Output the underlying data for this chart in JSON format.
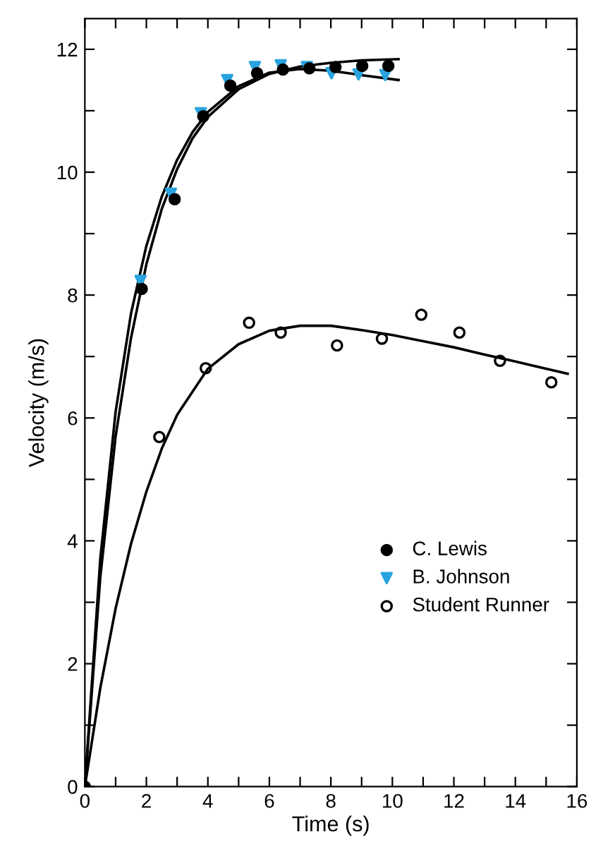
{
  "chart_data": {
    "type": "scatter",
    "xlabel": "Time (s)",
    "ylabel": "Velocity (m/s)",
    "xlim": [
      0,
      16
    ],
    "ylim": [
      0,
      12.5
    ],
    "xticks": [
      0,
      {
        "value": 1,
        "label": null
      },
      2,
      {
        "value": 3,
        "label": null
      },
      4,
      {
        "value": 5,
        "label": null
      },
      6,
      {
        "value": 7,
        "label": null
      },
      8,
      {
        "value": 9,
        "label": null
      },
      10,
      {
        "value": 11,
        "label": null
      },
      12,
      {
        "value": 13,
        "label": null
      },
      14,
      {
        "value": 15,
        "label": null
      },
      16
    ],
    "yticks": [
      0,
      {
        "value": 1,
        "label": null
      },
      2,
      {
        "value": 3,
        "label": null
      },
      4,
      {
        "value": 5,
        "label": null
      },
      6,
      {
        "value": 7,
        "label": null
      },
      8,
      {
        "value": 9,
        "label": null
      },
      10,
      {
        "value": 11,
        "label": null
      },
      12
    ],
    "grid": false,
    "legend": "bottom right",
    "series": [
      {
        "name": "C. Lewis",
        "marker": "circle",
        "color": "#000000",
        "x": [
          0,
          1.85,
          2.92,
          3.85,
          4.73,
          5.6,
          6.44,
          7.3,
          8.15,
          9.02,
          9.87
        ],
        "values": [
          0,
          8.1,
          9.56,
          10.91,
          11.41,
          11.61,
          11.67,
          11.69,
          11.71,
          11.73,
          11.73
        ]
      },
      {
        "name": "B. Johnson",
        "marker": "triangle",
        "color": "#29a3e0",
        "x": [
          1.81,
          2.8,
          3.77,
          4.63,
          5.53,
          6.37,
          7.22,
          8.02,
          8.9,
          9.77
        ],
        "values": [
          8.23,
          9.65,
          10.96,
          11.5,
          11.71,
          11.74,
          11.71,
          11.61,
          11.59,
          11.58
        ]
      },
      {
        "name": "Student Runner",
        "marker": "circle",
        "color": "#000000",
        "x": [
          2.42,
          3.93,
          5.34,
          6.37,
          8.2,
          9.66,
          10.94,
          12.18,
          13.5,
          15.17
        ],
        "values": [
          5.69,
          6.81,
          7.55,
          7.39,
          7.18,
          7.29,
          7.68,
          7.39,
          6.93,
          6.58
        ]
      },
      {
        "type": "line",
        "marker": "none",
        "color": "#000000",
        "x": [
          0,
          0.5,
          1,
          1.5,
          2,
          2.5,
          3,
          3.5,
          4,
          5,
          6,
          7,
          8,
          9,
          10.2
        ],
        "values": [
          0,
          3.4,
          5.7,
          7.3,
          8.5,
          9.4,
          10.05,
          10.55,
          10.9,
          11.35,
          11.6,
          11.72,
          11.78,
          11.82,
          11.84
        ]
      },
      {
        "type": "line",
        "marker": "none",
        "color": "#000000",
        "x": [
          0,
          0.5,
          1,
          1.5,
          2,
          2.5,
          3,
          3.5,
          4,
          5,
          6,
          7,
          8,
          9,
          10.2
        ],
        "values": [
          0,
          3.7,
          6.1,
          7.7,
          8.8,
          9.6,
          10.2,
          10.65,
          10.98,
          11.4,
          11.62,
          11.68,
          11.65,
          11.58,
          11.5
        ]
      },
      {
        "type": "line",
        "marker": "none",
        "color": "#000000",
        "x": [
          0,
          0.5,
          1,
          1.5,
          2,
          2.5,
          3,
          4,
          5,
          6,
          7,
          8,
          9,
          10,
          11,
          12,
          13,
          14,
          15,
          15.7
        ],
        "values": [
          0,
          1.6,
          2.9,
          3.95,
          4.8,
          5.5,
          6.05,
          6.8,
          7.2,
          7.42,
          7.5,
          7.5,
          7.43,
          7.35,
          7.25,
          7.15,
          7.03,
          6.92,
          6.8,
          6.72
        ]
      }
    ]
  }
}
